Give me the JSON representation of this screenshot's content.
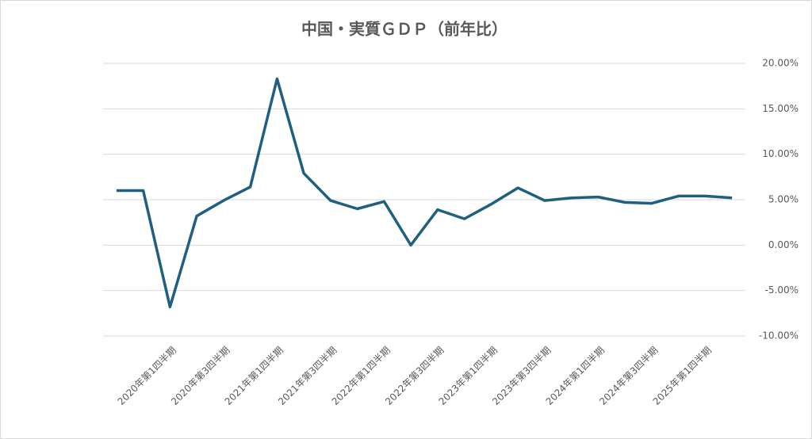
{
  "chart_data": {
    "type": "line",
    "title": "中国・実質ＧＤＰ（前年比）",
    "categories": [
      null,
      null,
      "2020年第1四半期",
      null,
      "2020年第3四半期",
      null,
      "2021年第1四半期",
      null,
      "2021年第3四半期",
      null,
      "2022年第1四半期",
      null,
      "2022年第3四半期",
      null,
      "2023年第1四半期",
      null,
      "2023年第3四半期",
      null,
      "2024年第1四半期",
      null,
      "2024年第3四半期",
      null,
      "2025年第1四半期",
      null
    ],
    "series": [
      {
        "color": "#1f5f7f",
        "values": [
          6.0,
          6.0,
          -6.8,
          3.2,
          4.9,
          6.4,
          18.3,
          7.9,
          4.9,
          4.0,
          4.8,
          0.0,
          3.9,
          2.9,
          4.5,
          6.3,
          4.9,
          5.2,
          5.3,
          4.7,
          4.6,
          5.4,
          5.4,
          5.2
        ]
      }
    ],
    "ylim": [
      -10,
      20
    ],
    "yticks": [
      {
        "value": -10,
        "label": "-10.00%"
      },
      {
        "value": -5,
        "label": "-5.00%"
      },
      {
        "value": 0,
        "label": "0.00%"
      },
      {
        "value": 5,
        "label": "5.00%"
      },
      {
        "value": 10,
        "label": "10.00%"
      },
      {
        "value": 15,
        "label": "15.00%"
      },
      {
        "value": 20,
        "label": "20.00%"
      }
    ],
    "grid": true
  }
}
